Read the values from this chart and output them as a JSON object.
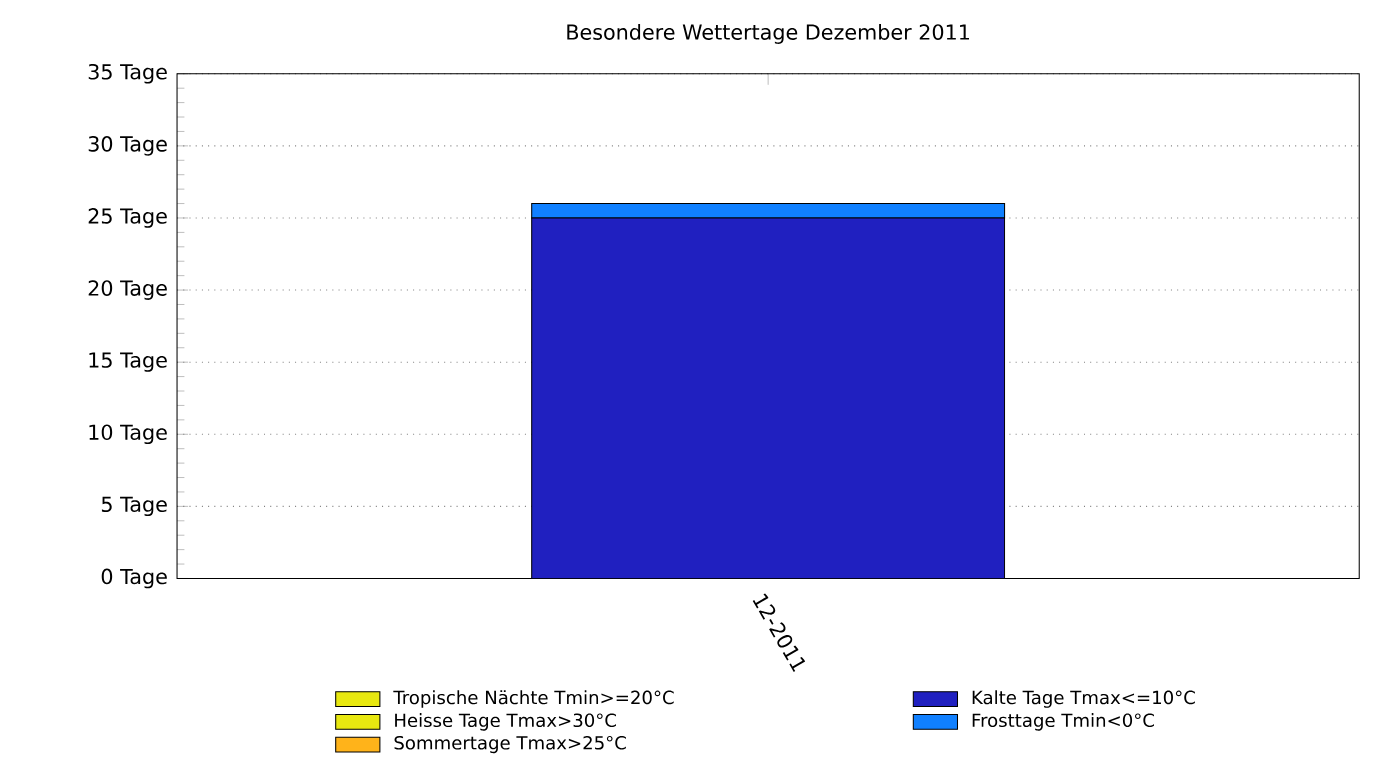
{
  "chart_data": {
    "type": "bar",
    "title": "Besondere Wettertage Dezember 2011",
    "stacked": true,
    "categories": [
      "12-2011"
    ],
    "series": [
      {
        "name": "Tropische Nächte Tmin>=20°C",
        "color": "#e8e810",
        "values": [
          0
        ]
      },
      {
        "name": "Heisse Tage Tmax>30°C",
        "color": "#e8e810",
        "values": [
          0
        ]
      },
      {
        "name": "Sommertage Tmax>25°C",
        "color": "#ffb31a",
        "values": [
          0
        ]
      },
      {
        "name": "Kalte Tage Tmax<=10°C",
        "color": "#2020c0",
        "values": [
          25
        ]
      },
      {
        "name": "Frosttage Tmin<0°C",
        "color": "#1080ff",
        "values": [
          1
        ]
      }
    ],
    "ylim": [
      0,
      35
    ],
    "yticks": [
      {
        "value": 0,
        "label": "0 Tage"
      },
      {
        "value": 5,
        "label": "5 Tage"
      },
      {
        "value": 10,
        "label": "10 Tage"
      },
      {
        "value": 15,
        "label": "15 Tage"
      },
      {
        "value": 20,
        "label": "20 Tage"
      },
      {
        "value": 25,
        "label": "25 Tage"
      },
      {
        "value": 30,
        "label": "30 Tage"
      },
      {
        "value": 35,
        "label": "35 Tage"
      }
    ],
    "grid": "y",
    "legend": "bottom"
  }
}
